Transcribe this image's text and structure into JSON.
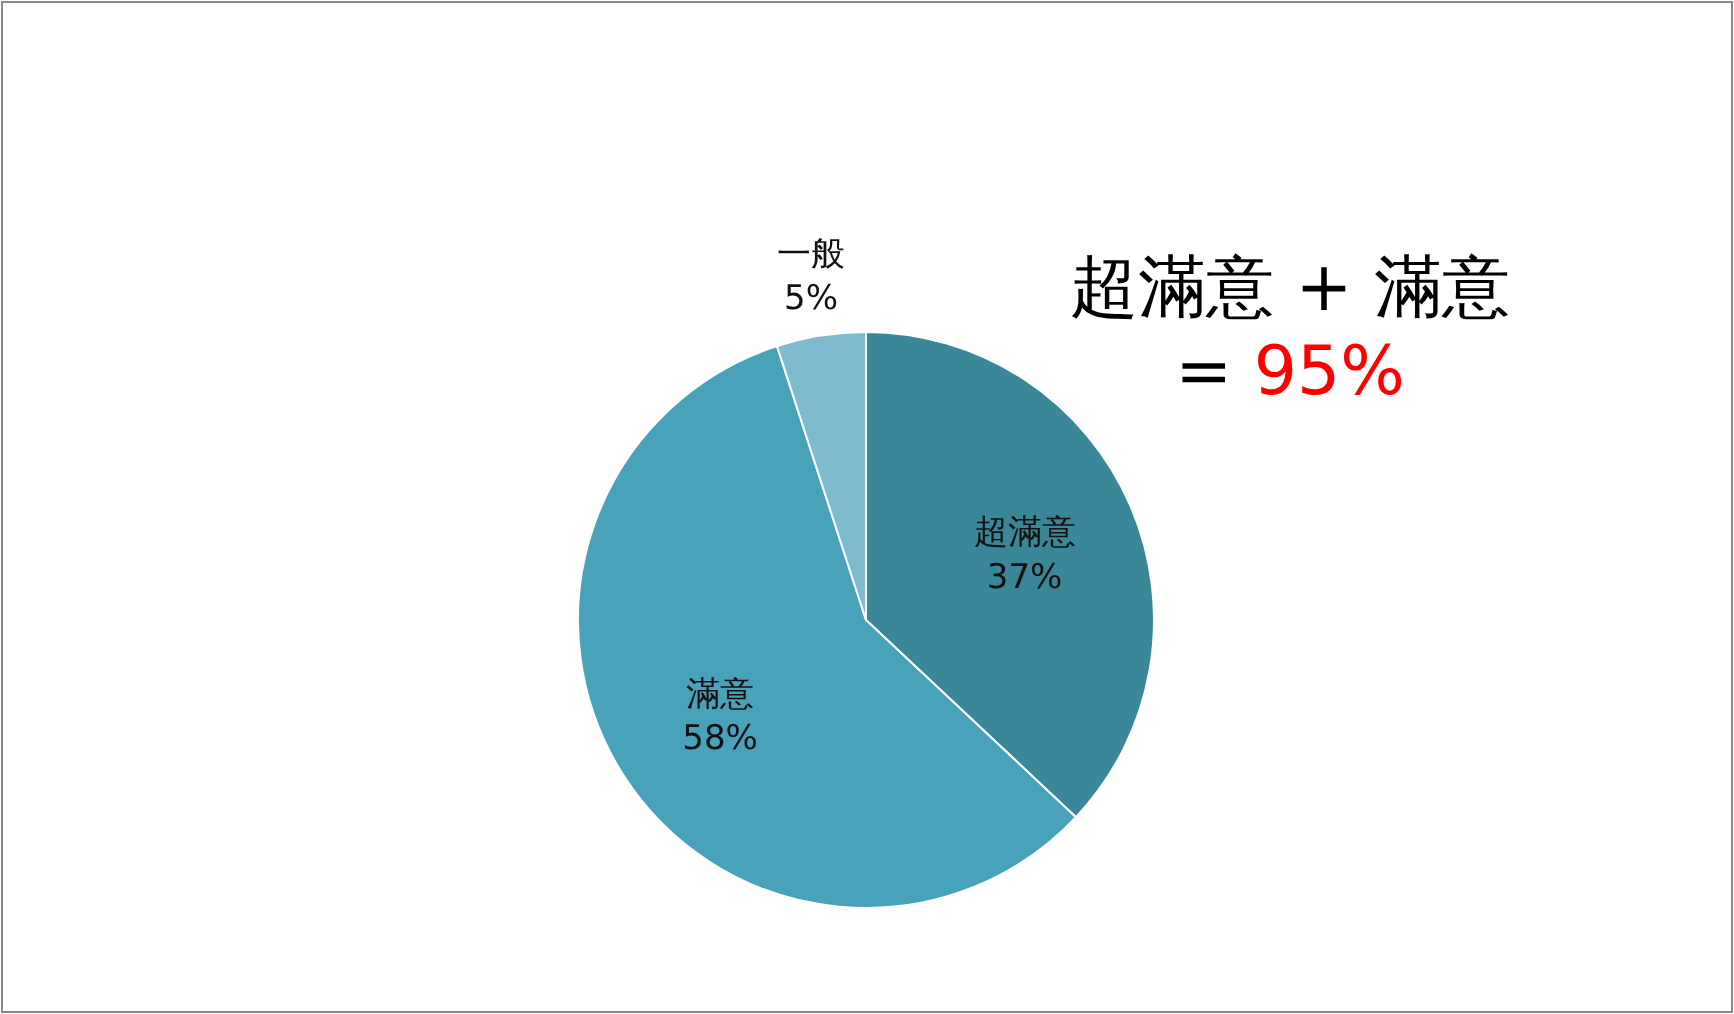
{
  "chart_data": {
    "type": "pie",
    "categories": [
      "超滿意",
      "滿意",
      "一般"
    ],
    "values": [
      37,
      58,
      5
    ],
    "colors": [
      "#3a8799",
      "#48a2ba",
      "#7fbacf"
    ],
    "value_labels": [
      "37%",
      "58%",
      "5%"
    ],
    "annotations": [
      "超滿意 + 滿意",
      "= 95%"
    ]
  }
}
